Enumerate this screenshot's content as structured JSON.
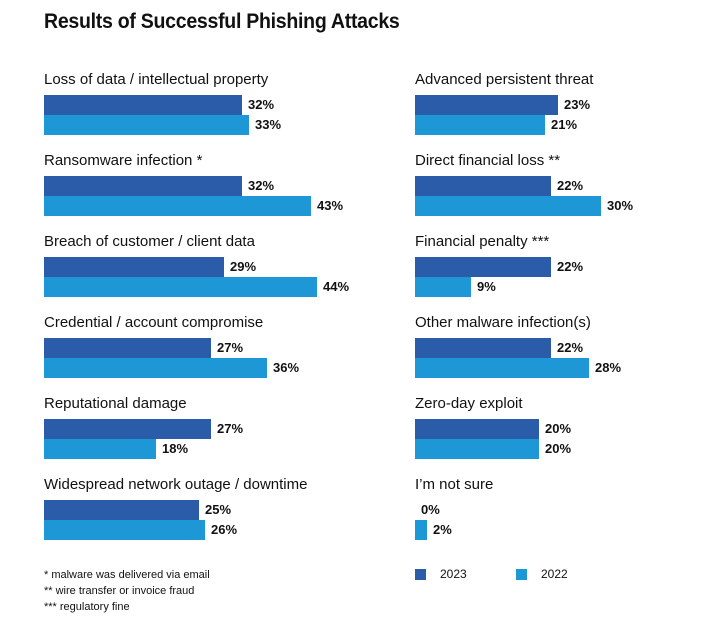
{
  "colors": {
    "s2023": "#2a5caa",
    "s2022": "#1e97d6"
  },
  "chart_data": {
    "type": "bar",
    "orientation": "horizontal",
    "title": "Results of Successful Phishing Attacks",
    "value_suffix": "%",
    "series": [
      {
        "name": "2023",
        "color": "#2a5caa"
      },
      {
        "name": "2022",
        "color": "#1e97d6"
      }
    ],
    "categories": [
      {
        "label": "Loss of data / intellectual property",
        "values": [
          32,
          33
        ]
      },
      {
        "label": "Ransomware infection *",
        "values": [
          32,
          43
        ]
      },
      {
        "label": "Breach of customer / client data",
        "values": [
          29,
          44
        ]
      },
      {
        "label": "Credential / account compromise",
        "values": [
          27,
          36
        ]
      },
      {
        "label": "Reputational damage",
        "values": [
          27,
          18
        ]
      },
      {
        "label": "Widespread network outage / downtime",
        "values": [
          25,
          26
        ]
      },
      {
        "label": "Advanced persistent threat",
        "values": [
          23,
          21
        ]
      },
      {
        "label": "Direct financial loss **",
        "values": [
          22,
          30
        ]
      },
      {
        "label": "Financial penalty ***",
        "values": [
          22,
          9
        ]
      },
      {
        "label": "Other malware infection(s)",
        "values": [
          22,
          28
        ]
      },
      {
        "label": "Zero-day exploit",
        "values": [
          20,
          20
        ]
      },
      {
        "label": "I’m not sure",
        "values": [
          0,
          2
        ]
      }
    ],
    "legend_position": "bottom-right",
    "footnotes": [
      "* malware was delivered via email",
      "**  wire transfer or invoice fraud",
      "*** regulatory fine"
    ]
  }
}
